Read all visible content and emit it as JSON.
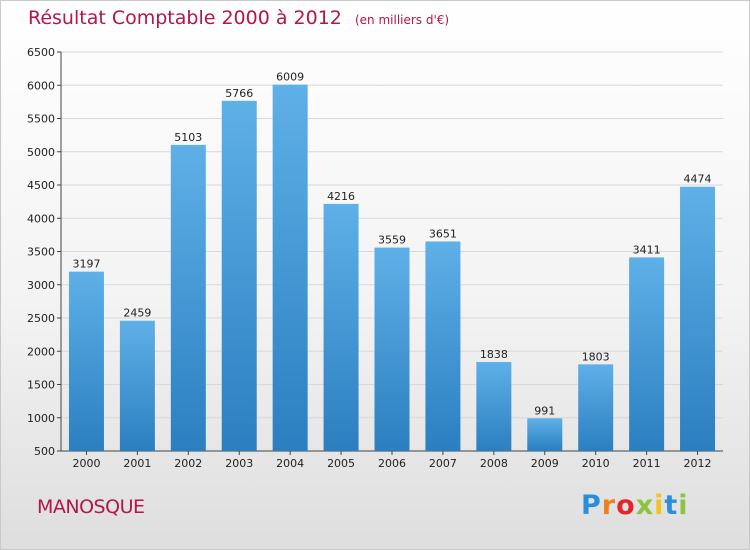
{
  "chart_data": {
    "type": "bar",
    "title": "Résultat Comptable 2000 à 2012",
    "unit_note": "(en milliers d'€)",
    "categories": [
      "2000",
      "2001",
      "2002",
      "2003",
      "2004",
      "2005",
      "2006",
      "2007",
      "2008",
      "2009",
      "2010",
      "2011",
      "2012"
    ],
    "values": [
      3197,
      2459,
      5103,
      5766,
      6009,
      4216,
      3559,
      3651,
      1838,
      991,
      1803,
      3411,
      4474
    ],
    "data_labels": [
      "3197",
      "2459",
      "5103",
      "5766",
      "6009",
      "4216",
      "3559",
      "3651",
      "1838",
      "991",
      "1803",
      "3411",
      "4474"
    ],
    "ylim": [
      500,
      6500
    ],
    "yticks": [
      500,
      1000,
      1500,
      2000,
      2500,
      3000,
      3500,
      4000,
      4500,
      5000,
      5500,
      6000,
      6500
    ],
    "ytick_labels": [
      "500",
      "1000",
      "1500",
      "2000",
      "2500",
      "3000",
      "3500",
      "4000",
      "4500",
      "5000",
      "5500",
      "6000",
      "6500"
    ],
    "xlabel": "",
    "ylabel": "",
    "grid": true,
    "colors": {
      "bar_top": "#5fb0e8",
      "bar_bottom": "#2b7fc0",
      "grid": "#d8d8d8",
      "title": "#b2164b"
    }
  },
  "footer": {
    "town": "MANOSQUE",
    "logo_letters": [
      {
        "ch": "P",
        "color": "#2a8fd6"
      },
      {
        "ch": "r",
        "color": "#f0801e"
      },
      {
        "ch": "o",
        "color": "#e3262c"
      },
      {
        "ch": "x",
        "color": "#8bc43f"
      },
      {
        "ch": "i",
        "color": "#f6c21b"
      },
      {
        "ch": "t",
        "color": "#2a8fd6"
      },
      {
        "ch": "i",
        "color": "#8bc43f"
      }
    ]
  }
}
